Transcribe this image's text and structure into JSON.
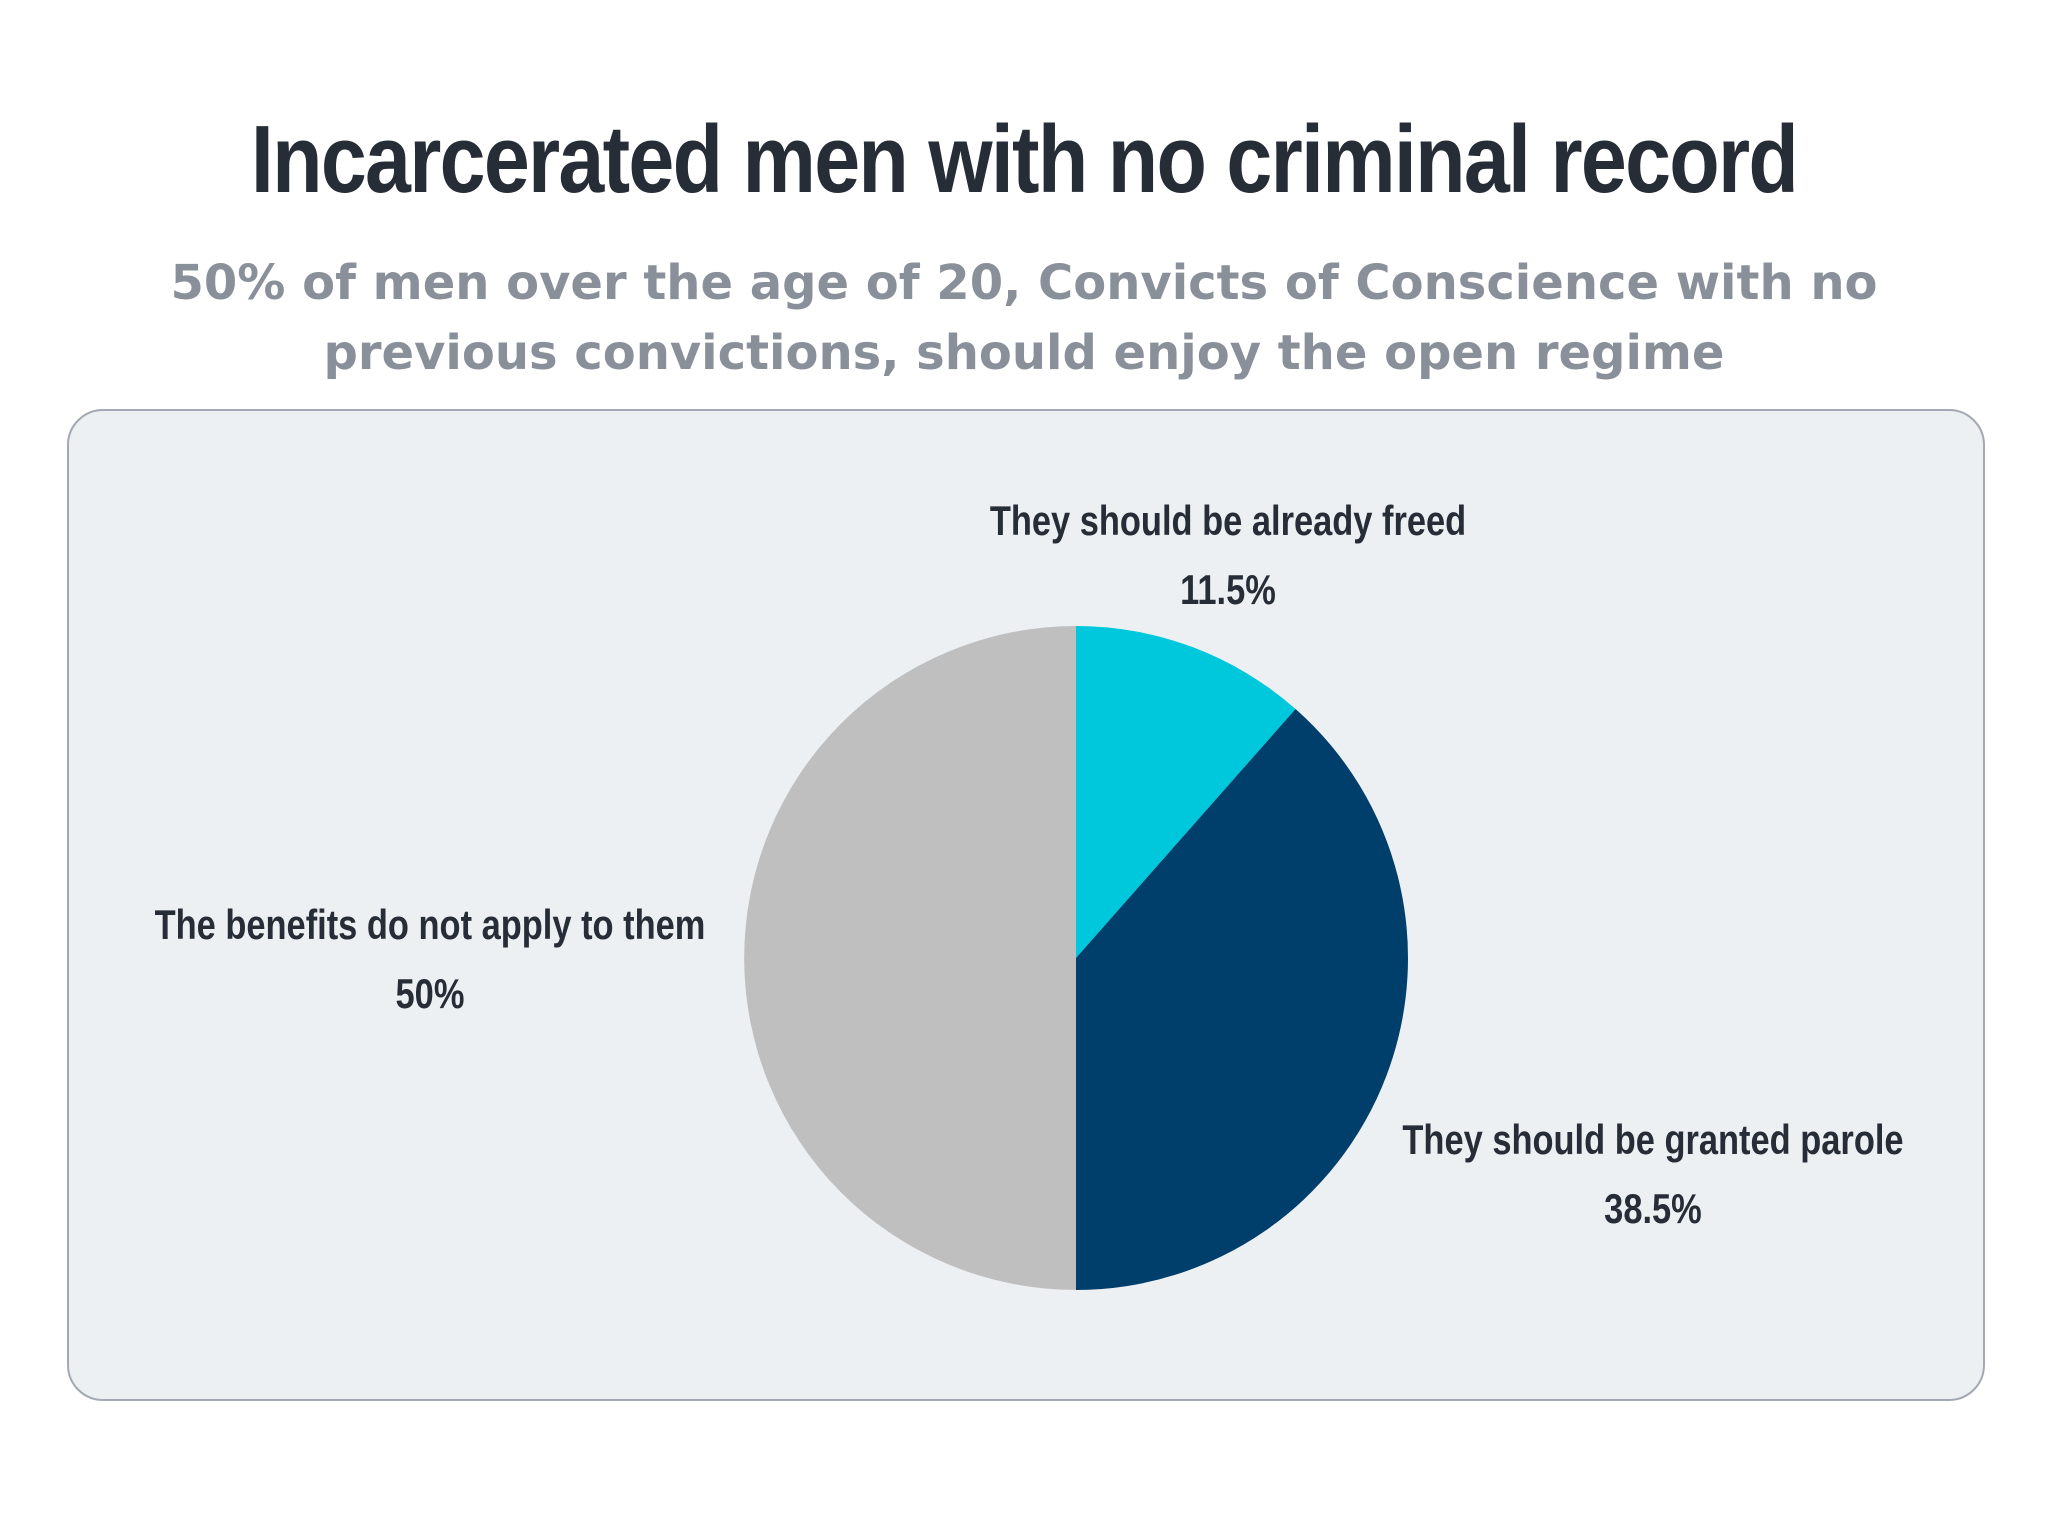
{
  "header": {
    "title": "Incarcerated men with no criminal record",
    "subtitle": "50% of men over the age of 20, Convicts of Conscience with no previous convictions, should enjoy the open regime"
  },
  "chart_data": {
    "type": "pie",
    "title": "Incarcerated men with no criminal record",
    "subtitle": "50% of men over the age of 20, Convicts of Conscience with no previous convictions, should enjoy the open regime",
    "start_angle_deg": 0,
    "direction": "clockwise",
    "slices": [
      {
        "label": "They should be already freed",
        "value": 11.5,
        "value_label": "11.5%",
        "color": "#00c8dc"
      },
      {
        "label": "They should be granted parole",
        "value": 38.5,
        "value_label": "38.5%",
        "color": "#003f6b"
      },
      {
        "label": "The benefits do not apply to them",
        "value": 50,
        "value_label": "50%",
        "color": "#bfbfbf"
      }
    ],
    "panel_color": "#edf0f3",
    "legend": "none"
  }
}
